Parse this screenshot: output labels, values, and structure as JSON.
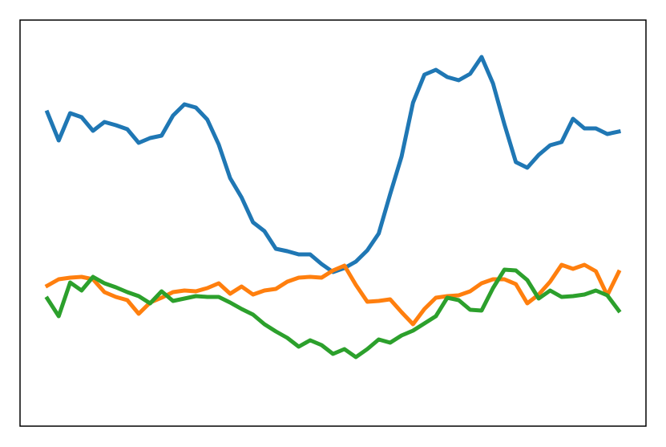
{
  "chart_data": {
    "type": "line",
    "ylim": [
      0,
      506
    ],
    "series": [
      {
        "color": "#1f77b4",
        "values": [
          391,
          356,
          390,
          385,
          368,
          379,
          375,
          370,
          353,
          359,
          362,
          387,
          401,
          397,
          382,
          351,
          309,
          285,
          254,
          243,
          221,
          218,
          214,
          214,
          202,
          192,
          197,
          205,
          219,
          240,
          289,
          336,
          403,
          438,
          444,
          435,
          431,
          439,
          460,
          427,
          376,
          329,
          322,
          338,
          350,
          354,
          383,
          371,
          371,
          364,
          367
        ]
      },
      {
        "color": "#ff7f0e",
        "values": [
          175,
          183,
          185,
          186,
          183,
          167,
          161,
          157,
          140,
          154,
          160,
          167,
          169,
          168,
          172,
          178,
          165,
          174,
          164,
          169,
          171,
          180,
          185,
          186,
          185,
          194,
          200,
          176,
          155,
          156,
          158,
          142,
          127,
          146,
          160,
          162,
          163,
          168,
          178,
          183,
          183,
          177,
          153,
          164,
          180,
          201,
          196,
          201,
          193,
          163,
          192
        ]
      },
      {
        "color": "#2ca02c",
        "values": [
          159,
          137,
          179,
          169,
          186,
          178,
          173,
          167,
          162,
          153,
          168,
          156,
          159,
          162,
          161,
          161,
          154,
          146,
          139,
          127,
          118,
          110,
          99,
          107,
          101,
          90,
          96,
          86,
          96,
          108,
          104,
          113,
          119,
          128,
          137,
          160,
          157,
          145,
          144,
          172,
          195,
          194,
          182,
          159,
          169,
          161,
          162,
          164,
          169,
          163,
          144
        ]
      }
    ]
  }
}
